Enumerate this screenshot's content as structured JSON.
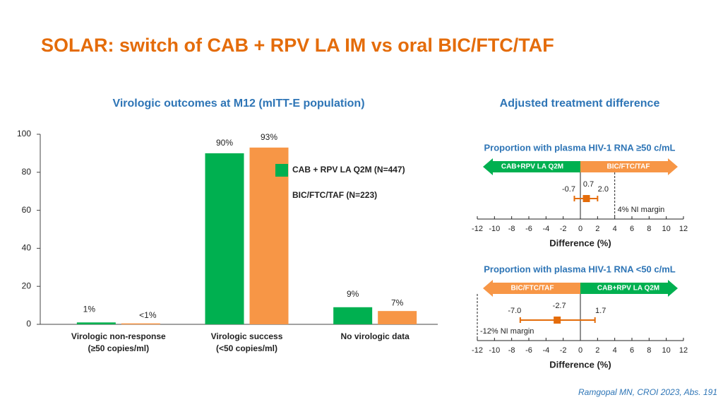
{
  "title": "SOLAR: switch of CAB + RPV LA IM vs oral BIC/FTC/TAF",
  "panel_title": "Adjusted treatment difference",
  "source": "Ramgopal MN, CROI 2023, Abs. 191",
  "chart_data": [
    {
      "type": "bar",
      "title": "Virologic outcomes at M12 (mITT-E population)",
      "categories": [
        "Virologic non-response\n(≥50 copies/ml)",
        "Virologic success\n(<50 copies/ml)",
        "No virologic data"
      ],
      "series": [
        {
          "name": "CAB + RPV LA Q2M (N=447)",
          "color": "#00b050",
          "values": [
            1,
            90,
            9
          ],
          "value_labels": [
            "1%",
            "90%",
            "9%"
          ]
        },
        {
          "name": "BIC/FTC/TAF (N=223)",
          "color": "#f79646",
          "values": [
            0.5,
            93,
            7
          ],
          "value_labels": [
            "<1%",
            "93%",
            "7%"
          ]
        }
      ],
      "ylim": [
        0,
        100
      ],
      "yticks": [
        0,
        20,
        40,
        60,
        80,
        100
      ]
    },
    {
      "type": "forest",
      "title": "Proportion with plasma HIV-1 RNA ≥50 c/mL",
      "arrow_left": {
        "label": "CAB+RPV LA Q2M",
        "color": "#00b050"
      },
      "arrow_right": {
        "label": "BIC/FTC/TAF",
        "color": "#f79646"
      },
      "estimate": 0.7,
      "ci": [
        -0.7,
        2.0
      ],
      "ci_labels": [
        "-0.7",
        "2.0"
      ],
      "color": "#e46c0a",
      "margin": 4,
      "margin_label": "4% NI margin",
      "xlim": [
        -12,
        12
      ],
      "xticks": [
        -12,
        -10,
        -8,
        -6,
        -4,
        -2,
        0,
        2,
        4,
        6,
        8,
        10,
        12
      ],
      "xlabel": "Difference (%)"
    },
    {
      "type": "forest",
      "title": "Proportion with plasma HIV-1 RNA <50 c/mL",
      "arrow_left": {
        "label": "BIC/FTC/TAF",
        "color": "#f79646"
      },
      "arrow_right": {
        "label": "CAB+RPV LA Q2M",
        "color": "#00b050"
      },
      "estimate": -2.7,
      "ci": [
        -7.0,
        1.7
      ],
      "ci_labels": [
        "-7.0",
        "1.7"
      ],
      "color": "#e46c0a",
      "margin": -12,
      "margin_label": "-12% NI margin",
      "xlim": [
        -12,
        12
      ],
      "xticks": [
        -12,
        -10,
        -8,
        -6,
        -4,
        -2,
        0,
        2,
        4,
        6,
        8,
        10,
        12
      ],
      "xlabel": "Difference (%)"
    }
  ]
}
